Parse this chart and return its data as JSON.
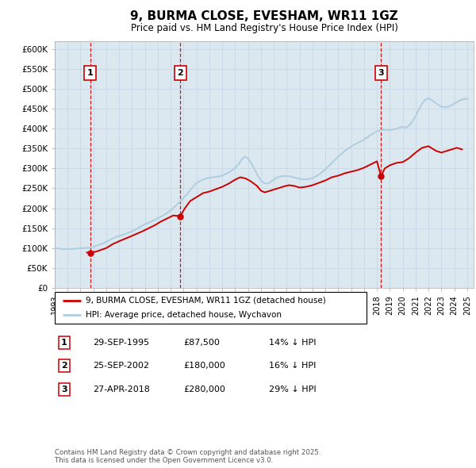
{
  "title": "9, BURMA CLOSE, EVESHAM, WR11 1GZ",
  "subtitle": "Price paid vs. HM Land Registry's House Price Index (HPI)",
  "ylim": [
    0,
    620000
  ],
  "xlim_start": 1993.0,
  "xlim_end": 2025.5,
  "sales": [
    {
      "label": "1",
      "date": 1995.75,
      "price": 87500,
      "note": "29-SEP-1995",
      "price_str": "£87,500",
      "pct": "14% ↓ HPI"
    },
    {
      "label": "2",
      "date": 2002.73,
      "price": 180000,
      "note": "25-SEP-2002",
      "price_str": "£180,000",
      "pct": "16% ↓ HPI"
    },
    {
      "label": "3",
      "date": 2018.32,
      "price": 280000,
      "note": "27-APR-2018",
      "price_str": "£280,000",
      "pct": "29% ↓ HPI"
    }
  ],
  "hpi_color": "#aecde0",
  "price_color": "#cc0000",
  "vline_color": "#cc0000",
  "grid_color": "#c8d8e8",
  "bg_color": "#ffffff",
  "plot_bg_color": "#dce8f0",
  "legend_label_price": "9, BURMA CLOSE, EVESHAM, WR11 1GZ (detached house)",
  "legend_label_hpi": "HPI: Average price, detached house, Wychavon",
  "footer": "Contains HM Land Registry data © Crown copyright and database right 2025.\nThis data is licensed under the Open Government Licence v3.0.",
  "hpi_data_x": [
    1993.0,
    1993.25,
    1993.5,
    1993.75,
    1994.0,
    1994.25,
    1994.5,
    1994.75,
    1995.0,
    1995.25,
    1995.5,
    1995.75,
    1996.0,
    1996.25,
    1996.5,
    1996.75,
    1997.0,
    1997.25,
    1997.5,
    1997.75,
    1998.0,
    1998.25,
    1998.5,
    1998.75,
    1999.0,
    1999.25,
    1999.5,
    1999.75,
    2000.0,
    2000.25,
    2000.5,
    2000.75,
    2001.0,
    2001.25,
    2001.5,
    2001.75,
    2002.0,
    2002.25,
    2002.5,
    2002.75,
    2003.0,
    2003.25,
    2003.5,
    2003.75,
    2004.0,
    2004.25,
    2004.5,
    2004.75,
    2005.0,
    2005.25,
    2005.5,
    2005.75,
    2006.0,
    2006.25,
    2006.5,
    2006.75,
    2007.0,
    2007.25,
    2007.5,
    2007.75,
    2008.0,
    2008.25,
    2008.5,
    2008.75,
    2009.0,
    2009.25,
    2009.5,
    2009.75,
    2010.0,
    2010.25,
    2010.5,
    2010.75,
    2011.0,
    2011.25,
    2011.5,
    2011.75,
    2012.0,
    2012.25,
    2012.5,
    2012.75,
    2013.0,
    2013.25,
    2013.5,
    2013.75,
    2014.0,
    2014.25,
    2014.5,
    2014.75,
    2015.0,
    2015.25,
    2015.5,
    2015.75,
    2016.0,
    2016.25,
    2016.5,
    2016.75,
    2017.0,
    2017.25,
    2017.5,
    2017.75,
    2018.0,
    2018.25,
    2018.5,
    2018.75,
    2019.0,
    2019.25,
    2019.5,
    2019.75,
    2020.0,
    2020.25,
    2020.5,
    2020.75,
    2021.0,
    2021.25,
    2021.5,
    2021.75,
    2022.0,
    2022.25,
    2022.5,
    2022.75,
    2023.0,
    2023.25,
    2023.5,
    2023.75,
    2024.0,
    2024.25,
    2024.5,
    2024.75,
    2025.0
  ],
  "hpi_data_y": [
    100000,
    99000,
    98000,
    97500,
    97000,
    97500,
    98000,
    99000,
    99500,
    100000,
    100500,
    101000,
    103000,
    106000,
    109000,
    112000,
    116000,
    120000,
    124000,
    128000,
    130000,
    133000,
    136000,
    139000,
    142000,
    146000,
    151000,
    156000,
    160000,
    163000,
    167000,
    171000,
    175000,
    179000,
    184000,
    189000,
    195000,
    202000,
    210000,
    218000,
    226000,
    235000,
    245000,
    255000,
    263000,
    268000,
    272000,
    275000,
    277000,
    278000,
    279000,
    280000,
    282000,
    286000,
    290000,
    295000,
    302000,
    310000,
    322000,
    330000,
    325000,
    313000,
    298000,
    282000,
    270000,
    263000,
    262000,
    266000,
    272000,
    277000,
    280000,
    281000,
    281000,
    280000,
    278000,
    276000,
    274000,
    273000,
    273000,
    274000,
    276000,
    280000,
    285000,
    291000,
    298000,
    306000,
    314000,
    322000,
    330000,
    337000,
    344000,
    350000,
    355000,
    360000,
    364000,
    368000,
    373000,
    378000,
    384000,
    389000,
    393000,
    396000,
    397000,
    397000,
    397000,
    398000,
    400000,
    403000,
    405000,
    402000,
    408000,
    418000,
    432000,
    448000,
    463000,
    473000,
    476000,
    472000,
    466000,
    460000,
    455000,
    454000,
    455000,
    458000,
    463000,
    468000,
    472000,
    475000,
    475000
  ],
  "price_data_x": [
    1995.5,
    1995.75,
    1996.3,
    1997.0,
    1997.5,
    1998.2,
    1998.8,
    1999.3,
    1999.8,
    2000.3,
    2000.8,
    2001.2,
    2001.7,
    2002.2,
    2002.73,
    2003.1,
    2003.5,
    2004.0,
    2004.5,
    2005.0,
    2005.5,
    2006.0,
    2006.5,
    2007.0,
    2007.4,
    2007.8,
    2008.2,
    2008.7,
    2009.0,
    2009.3,
    2009.7,
    2010.1,
    2010.5,
    2010.9,
    2011.2,
    2011.6,
    2012.0,
    2012.5,
    2013.0,
    2013.5,
    2014.0,
    2014.5,
    2015.0,
    2015.5,
    2016.0,
    2016.5,
    2017.0,
    2017.5,
    2018.0,
    2018.32,
    2018.6,
    2019.0,
    2019.5,
    2020.0,
    2020.5,
    2021.0,
    2021.5,
    2022.0,
    2022.3,
    2022.6,
    2023.0,
    2023.4,
    2023.8,
    2024.2,
    2024.6
  ],
  "price_data_y": [
    89000,
    87500,
    92000,
    100000,
    110000,
    120000,
    128000,
    135000,
    142000,
    150000,
    158000,
    166000,
    174000,
    182000,
    180000,
    200000,
    218000,
    228000,
    238000,
    242000,
    248000,
    254000,
    262000,
    272000,
    278000,
    275000,
    268000,
    256000,
    244000,
    240000,
    244000,
    248000,
    252000,
    256000,
    258000,
    256000,
    252000,
    254000,
    258000,
    264000,
    270000,
    278000,
    282000,
    288000,
    292000,
    296000,
    302000,
    310000,
    318000,
    280000,
    300000,
    308000,
    314000,
    316000,
    326000,
    340000,
    352000,
    356000,
    350000,
    344000,
    340000,
    344000,
    348000,
    352000,
    348000
  ]
}
